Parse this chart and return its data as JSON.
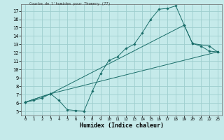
{
  "title": "Courbe de l'humidex pour Thomery (77)",
  "xlabel": "Humidex (Indice chaleur)",
  "bg_color": "#c5eaea",
  "grid_color": "#9ecece",
  "line_color": "#1a6e6a",
  "xlim": [
    -0.5,
    23.5
  ],
  "ylim": [
    4.5,
    17.8
  ],
  "xticks": [
    0,
    1,
    2,
    3,
    4,
    5,
    6,
    7,
    8,
    9,
    10,
    11,
    12,
    13,
    14,
    15,
    16,
    17,
    18,
    19,
    20,
    21,
    22,
    23
  ],
  "yticks": [
    5,
    6,
    7,
    8,
    9,
    10,
    11,
    12,
    13,
    14,
    15,
    16,
    17
  ],
  "line0_x": [
    0,
    1,
    2,
    3,
    4,
    5,
    6,
    7,
    8,
    9,
    10,
    11,
    12,
    13,
    14,
    15,
    16,
    17,
    18,
    19,
    20,
    21,
    22,
    23
  ],
  "line0_y": [
    6.1,
    6.3,
    6.6,
    7.1,
    6.3,
    5.2,
    5.1,
    5.0,
    7.4,
    9.5,
    11.1,
    11.5,
    12.5,
    13.0,
    14.4,
    16.0,
    17.2,
    17.3,
    17.6,
    15.3,
    13.1,
    12.8,
    12.2,
    12.1
  ],
  "line1_x": [
    0,
    3,
    23
  ],
  "line1_y": [
    6.1,
    7.1,
    12.1
  ],
  "line2_x": [
    0,
    3,
    19,
    20,
    22,
    23
  ],
  "line2_y": [
    6.1,
    7.1,
    15.3,
    13.1,
    12.8,
    12.1
  ]
}
